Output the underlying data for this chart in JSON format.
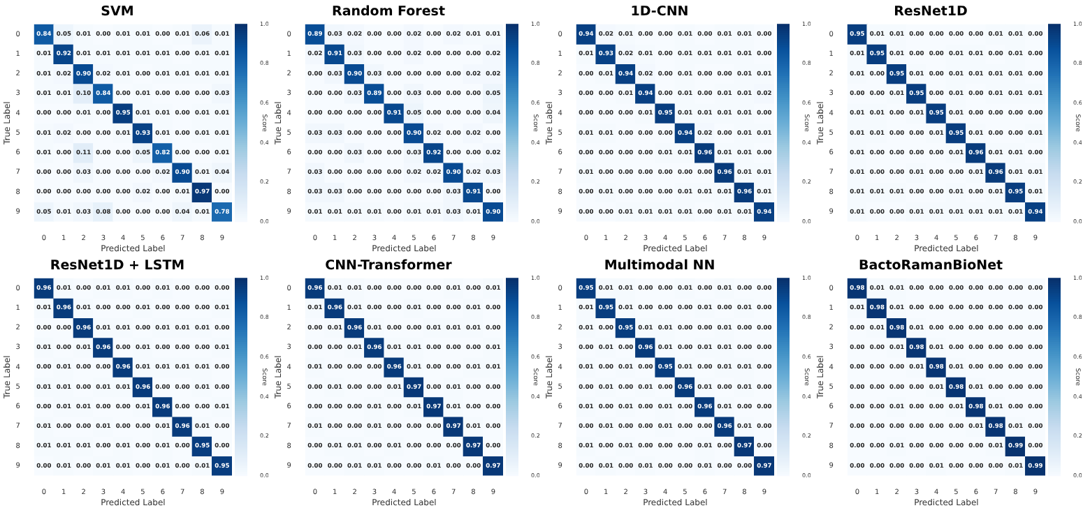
{
  "chart_data": [
    {
      "type": "heatmap",
      "title": "SVM",
      "xlabel": "Predicted Label",
      "ylabel": "True Label",
      "clabel": "Score",
      "categories": [
        "0",
        "1",
        "2",
        "3",
        "4",
        "5",
        "6",
        "7",
        "8",
        "9"
      ],
      "y_categories": [
        "0",
        "1",
        "2",
        "3",
        "4",
        "5",
        "6",
        "7",
        "8",
        "9"
      ],
      "clim": [
        0,
        1
      ],
      "cticks": [
        {
          "value": 0,
          "label": "0.0"
        },
        {
          "value": 0.2,
          "label": "0.2"
        },
        {
          "value": 0.4,
          "label": "0.4"
        },
        {
          "value": 0.6,
          "label": "0.6"
        },
        {
          "value": 0.8,
          "label": "0.8"
        },
        {
          "value": 1,
          "label": "1.0"
        }
      ],
      "cells": [
        [
          0.84,
          0.05,
          0.01,
          0,
          0.01,
          0.01,
          0,
          0.01,
          0.06,
          0.01
        ],
        [
          0.01,
          0.92,
          0.01,
          0.01,
          0.01,
          0.01,
          0.01,
          0,
          0.01,
          0.01
        ],
        [
          0.01,
          0.02,
          0.9,
          0.02,
          0.01,
          0,
          0.01,
          0.01,
          0.01,
          0.01
        ],
        [
          0.01,
          0.01,
          0.1,
          0.84,
          0,
          0.01,
          0,
          0,
          0,
          0.03
        ],
        [
          0,
          0,
          0.01,
          0,
          0.95,
          0.01,
          0.01,
          0,
          0.01,
          0.01
        ],
        [
          0.01,
          0.02,
          0,
          0,
          0.01,
          0.93,
          0.01,
          0,
          0.01,
          0.01
        ],
        [
          0.01,
          0,
          0.11,
          0,
          0,
          0.05,
          0.82,
          0,
          0,
          0.01
        ],
        [
          0,
          0,
          0.03,
          0,
          0,
          0,
          0.02,
          0.9,
          0.01,
          0.04
        ],
        [
          0,
          0,
          0,
          0,
          0,
          0.02,
          0,
          0.01,
          0.97,
          0
        ],
        [
          0.05,
          0.01,
          0.03,
          0.08,
          0,
          0,
          0,
          0.04,
          0.01,
          0.78
        ]
      ],
      "cell_labels": [
        [
          "0.84",
          "0.05",
          "0.01",
          "0.00",
          "0.01",
          "0.01",
          "0.00",
          "0.01",
          "0.06",
          "0.01"
        ],
        [
          "0.01",
          "0.92",
          "0.01",
          "0.01",
          "0.01",
          "0.01",
          "0.01",
          "0.00",
          "0.01",
          "0.01"
        ],
        [
          "0.01",
          "0.02",
          "0.90",
          "0.02",
          "0.01",
          "0.00",
          "0.01",
          "0.01",
          "0.01",
          "0.01"
        ],
        [
          "0.01",
          "0.01",
          "0.10",
          "0.84",
          "0.00",
          "0.01",
          "0.00",
          "0.00",
          "0.00",
          "0.03"
        ],
        [
          "0.00",
          "0.00",
          "0.01",
          "0.00",
          "0.95",
          "0.01",
          "0.01",
          "0.00",
          "0.01",
          "0.01"
        ],
        [
          "0.01",
          "0.02",
          "0.00",
          "0.00",
          "0.01",
          "0.93",
          "0.01",
          "0.00",
          "0.01",
          "0.01"
        ],
        [
          "0.01",
          "0.00",
          "0.11",
          "0.00",
          "0.00",
          "0.05",
          "0.82",
          "0.00",
          "0.00",
          "0.01"
        ],
        [
          "0.00",
          "0.00",
          "0.03",
          "0.00",
          "0.00",
          "0.00",
          "0.02",
          "0.90",
          "0.01",
          "0.04"
        ],
        [
          "0.00",
          "0.00",
          "0.00",
          "0.00",
          "0.00",
          "0.02",
          "0.00",
          "0.01",
          "0.97",
          "0.00"
        ],
        [
          "0.05",
          "0.01",
          "0.03",
          "0.08",
          "0.00",
          "0.00",
          "0.00",
          "0.04",
          "0.01",
          "0.78"
        ]
      ]
    },
    {
      "type": "heatmap",
      "title": "Random Forest",
      "xlabel": "Predicted Label",
      "ylabel": "True Label",
      "clabel": "Score",
      "categories": [
        "0",
        "1",
        "2",
        "3",
        "4",
        "5",
        "6",
        "7",
        "8",
        "9"
      ],
      "y_categories": [
        "0",
        "1",
        "2",
        "3",
        "4",
        "5",
        "6",
        "7",
        "8",
        "9"
      ],
      "clim": [
        0,
        1
      ],
      "cticks": [
        {
          "value": 0,
          "label": "0.0"
        },
        {
          "value": 0.2,
          "label": "0.2"
        },
        {
          "value": 0.4,
          "label": "0.4"
        },
        {
          "value": 0.6,
          "label": "0.6"
        },
        {
          "value": 0.8,
          "label": "0.8"
        },
        {
          "value": 1,
          "label": "1.0"
        }
      ],
      "cells": [
        [
          0.89,
          0.03,
          0.02,
          0,
          0,
          0.02,
          0,
          0.02,
          0.01,
          0.01
        ],
        [
          0.02,
          0.91,
          0.03,
          0,
          0,
          0.02,
          0,
          0,
          0,
          0.02
        ],
        [
          0,
          0.03,
          0.9,
          0.03,
          0,
          0,
          0,
          0,
          0.02,
          0.02
        ],
        [
          0,
          0,
          0.03,
          0.89,
          0,
          0.03,
          0,
          0,
          0,
          0.05
        ],
        [
          0,
          0,
          0,
          0,
          0.91,
          0.05,
          0,
          0,
          0,
          0.04
        ],
        [
          0.03,
          0.03,
          0,
          0,
          0,
          0.9,
          0.02,
          0,
          0.02,
          0
        ],
        [
          0,
          0,
          0.03,
          0,
          0,
          0.03,
          0.92,
          0,
          0,
          0.02
        ],
        [
          0.03,
          0,
          0,
          0,
          0,
          0.02,
          0.02,
          0.9,
          0.02,
          0.03
        ],
        [
          0.03,
          0.03,
          0,
          0,
          0,
          0,
          0,
          0.03,
          0.91,
          0
        ],
        [
          0.01,
          0.01,
          0.01,
          0.01,
          0,
          0.01,
          0.01,
          0.03,
          0.01,
          0.9
        ]
      ],
      "cell_labels": [
        [
          "0.89",
          "0.03",
          "0.02",
          "0.00",
          "0.00",
          "0.02",
          "0.00",
          "0.02",
          "0.01",
          "0.01"
        ],
        [
          "0.02",
          "0.91",
          "0.03",
          "0.00",
          "0.00",
          "0.02",
          "0.00",
          "0.00",
          "0.00",
          "0.02"
        ],
        [
          "0.00",
          "0.03",
          "0.90",
          "0.03",
          "0.00",
          "0.00",
          "0.00",
          "0.00",
          "0.02",
          "0.02"
        ],
        [
          "0.00",
          "0.00",
          "0.03",
          "0.89",
          "0.00",
          "0.03",
          "0.00",
          "0.00",
          "0.00",
          "0.05"
        ],
        [
          "0.00",
          "0.00",
          "0.00",
          "0.00",
          "0.91",
          "0.05",
          "0.00",
          "0.00",
          "0.00",
          "0.04"
        ],
        [
          "0.03",
          "0.03",
          "0.00",
          "0.00",
          "0.00",
          "0.90",
          "0.02",
          "0.00",
          "0.02",
          "0.00"
        ],
        [
          "0.00",
          "0.00",
          "0.03",
          "0.00",
          "0.00",
          "0.03",
          "0.92",
          "0.00",
          "0.00",
          "0.02"
        ],
        [
          "0.03",
          "0.00",
          "0.00",
          "0.00",
          "0.00",
          "0.02",
          "0.02",
          "0.90",
          "0.02",
          "0.03"
        ],
        [
          "0.03",
          "0.03",
          "0.00",
          "0.00",
          "0.00",
          "0.00",
          "0.00",
          "0.03",
          "0.91",
          "0.00"
        ],
        [
          "0.01",
          "0.01",
          "0.01",
          "0.01",
          "0.00",
          "0.01",
          "0.01",
          "0.03",
          "0.01",
          "0.90"
        ]
      ]
    },
    {
      "type": "heatmap",
      "title": "1D-CNN",
      "xlabel": "Predicted Label",
      "ylabel": "True Label",
      "clabel": "Score",
      "categories": [
        "0",
        "1",
        "2",
        "3",
        "4",
        "5",
        "6",
        "7",
        "8",
        "9"
      ],
      "y_categories": [
        "0",
        "1",
        "2",
        "3",
        "4",
        "5",
        "6",
        "7",
        "8",
        "9"
      ],
      "clim": [
        0,
        1
      ],
      "cticks": [
        {
          "value": 0,
          "label": "0.0"
        },
        {
          "value": 0.2,
          "label": "0.2"
        },
        {
          "value": 0.4,
          "label": "0.4"
        },
        {
          "value": 0.6,
          "label": "0.6"
        },
        {
          "value": 0.8,
          "label": "0.8"
        },
        {
          "value": 1,
          "label": "1.0"
        }
      ],
      "cells": [
        [
          0.94,
          0.02,
          0.01,
          0,
          0,
          0.01,
          0,
          0.01,
          0.01,
          0
        ],
        [
          0.01,
          0.93,
          0.02,
          0.01,
          0,
          0.01,
          0.01,
          0.01,
          0.01,
          0
        ],
        [
          0,
          0.01,
          0.94,
          0.02,
          0,
          0.01,
          0,
          0,
          0.01,
          0.01
        ],
        [
          0,
          0,
          0.01,
          0.94,
          0,
          0.01,
          0,
          0.01,
          0.01,
          0.02
        ],
        [
          0,
          0,
          0,
          0.01,
          0.95,
          0.01,
          0.01,
          0.01,
          0.01,
          0
        ],
        [
          0.01,
          0.01,
          0,
          0,
          0,
          0.94,
          0.02,
          0,
          0.01,
          0.01
        ],
        [
          0,
          0,
          0,
          0,
          0.01,
          0.01,
          0.96,
          0.01,
          0.01,
          0
        ],
        [
          0.01,
          0,
          0,
          0,
          0,
          0,
          0,
          0.96,
          0.01,
          0.01
        ],
        [
          0,
          0.01,
          0,
          0,
          0,
          0.01,
          0.01,
          0.01,
          0.96,
          0.01
        ],
        [
          0,
          0,
          0.01,
          0.01,
          0.01,
          0.01,
          0,
          0.01,
          0.01,
          0.94
        ]
      ],
      "cell_labels": [
        [
          "0.94",
          "0.02",
          "0.01",
          "0.00",
          "0.00",
          "0.01",
          "0.00",
          "0.01",
          "0.01",
          "0.00"
        ],
        [
          "0.01",
          "0.93",
          "0.02",
          "0.01",
          "0.00",
          "0.01",
          "0.01",
          "0.01",
          "0.01",
          "0.00"
        ],
        [
          "0.00",
          "0.01",
          "0.94",
          "0.02",
          "0.00",
          "0.01",
          "0.00",
          "0.00",
          "0.01",
          "0.01"
        ],
        [
          "0.00",
          "0.00",
          "0.01",
          "0.94",
          "0.00",
          "0.01",
          "0.00",
          "0.01",
          "0.01",
          "0.02"
        ],
        [
          "0.00",
          "0.00",
          "0.00",
          "0.01",
          "0.95",
          "0.01",
          "0.01",
          "0.01",
          "0.01",
          "0.00"
        ],
        [
          "0.01",
          "0.01",
          "0.00",
          "0.00",
          "0.00",
          "0.94",
          "0.02",
          "0.00",
          "0.01",
          "0.01"
        ],
        [
          "0.00",
          "0.00",
          "0.00",
          "0.00",
          "0.01",
          "0.01",
          "0.96",
          "0.01",
          "0.01",
          "0.00"
        ],
        [
          "0.01",
          "0.00",
          "0.00",
          "0.00",
          "0.00",
          "0.00",
          "0.00",
          "0.96",
          "0.01",
          "0.01"
        ],
        [
          "0.00",
          "0.01",
          "0.00",
          "0.00",
          "0.00",
          "0.01",
          "0.01",
          "0.01",
          "0.96",
          "0.01"
        ],
        [
          "0.00",
          "0.00",
          "0.01",
          "0.01",
          "0.01",
          "0.01",
          "0.00",
          "0.01",
          "0.01",
          "0.94"
        ]
      ]
    },
    {
      "type": "heatmap",
      "title": "ResNet1D",
      "xlabel": "Predicted Label",
      "ylabel": "True Label",
      "clabel": "Score",
      "categories": [
        "0",
        "1",
        "2",
        "3",
        "4",
        "5",
        "6",
        "7",
        "8",
        "9"
      ],
      "y_categories": [
        "0",
        "1",
        "2",
        "3",
        "4",
        "5",
        "6",
        "7",
        "8",
        "9"
      ],
      "clim": [
        0,
        1
      ],
      "cticks": [
        {
          "value": 0,
          "label": "0.0"
        },
        {
          "value": 0.2,
          "label": "0.2"
        },
        {
          "value": 0.4,
          "label": "0.4"
        },
        {
          "value": 0.6,
          "label": "0.6"
        },
        {
          "value": 0.8,
          "label": "0.8"
        },
        {
          "value": 1,
          "label": "1.0"
        }
      ],
      "cells": [
        [
          0.95,
          0.01,
          0.01,
          0,
          0,
          0,
          0,
          0.01,
          0.01,
          0
        ],
        [
          0.01,
          0.95,
          0.01,
          0,
          0,
          0.01,
          0.01,
          0,
          0.01,
          0
        ],
        [
          0.01,
          0,
          0.95,
          0.01,
          0,
          0.01,
          0.01,
          0.01,
          0.01,
          0
        ],
        [
          0,
          0,
          0.01,
          0.95,
          0,
          0.01,
          0,
          0.01,
          0.01,
          0.01
        ],
        [
          0.01,
          0.01,
          0,
          0.01,
          0.95,
          0.01,
          0,
          0,
          0,
          0
        ],
        [
          0.01,
          0.01,
          0,
          0,
          0.01,
          0.95,
          0.01,
          0,
          0,
          0.01
        ],
        [
          0.01,
          0,
          0,
          0,
          0,
          0.01,
          0.96,
          0.01,
          0.01,
          0
        ],
        [
          0.01,
          0,
          0,
          0.01,
          0,
          0,
          0.01,
          0.96,
          0.01,
          0.01
        ],
        [
          0.01,
          0.01,
          0.01,
          0,
          0,
          0.01,
          0,
          0.01,
          0.95,
          0.01
        ],
        [
          0.01,
          0,
          0,
          0.01,
          0.01,
          0.01,
          0.01,
          0.01,
          0.01,
          0.94
        ]
      ],
      "cell_labels": [
        [
          "0.95",
          "0.01",
          "0.01",
          "0.00",
          "0.00",
          "0.00",
          "0.00",
          "0.01",
          "0.01",
          "0.00"
        ],
        [
          "0.01",
          "0.95",
          "0.01",
          "0.00",
          "0.00",
          "0.01",
          "0.01",
          "0.00",
          "0.01",
          "0.00"
        ],
        [
          "0.01",
          "0.00",
          "0.95",
          "0.01",
          "0.00",
          "0.01",
          "0.01",
          "0.01",
          "0.01",
          "0.00"
        ],
        [
          "0.00",
          "0.00",
          "0.01",
          "0.95",
          "0.00",
          "0.01",
          "0.00",
          "0.01",
          "0.01",
          "0.01"
        ],
        [
          "0.01",
          "0.01",
          "0.00",
          "0.01",
          "0.95",
          "0.01",
          "0.00",
          "0.00",
          "0.00",
          "0.00"
        ],
        [
          "0.01",
          "0.01",
          "0.00",
          "0.00",
          "0.01",
          "0.95",
          "0.01",
          "0.00",
          "0.00",
          "0.01"
        ],
        [
          "0.01",
          "0.00",
          "0.00",
          "0.00",
          "0.00",
          "0.01",
          "0.96",
          "0.01",
          "0.01",
          "0.00"
        ],
        [
          "0.01",
          "0.00",
          "0.00",
          "0.01",
          "0.00",
          "0.00",
          "0.01",
          "0.96",
          "0.01",
          "0.01"
        ],
        [
          "0.01",
          "0.01",
          "0.01",
          "0.00",
          "0.00",
          "0.01",
          "0.00",
          "0.01",
          "0.95",
          "0.01"
        ],
        [
          "0.01",
          "0.00",
          "0.00",
          "0.01",
          "0.01",
          "0.01",
          "0.01",
          "0.01",
          "0.01",
          "0.94"
        ]
      ]
    },
    {
      "type": "heatmap",
      "title": "ResNet1D + LSTM",
      "xlabel": "Predicted Label",
      "ylabel": "True Label",
      "clabel": "Score",
      "categories": [
        "0",
        "1",
        "2",
        "3",
        "4",
        "5",
        "6",
        "7",
        "8",
        "9"
      ],
      "y_categories": [
        "0",
        "1",
        "2",
        "3",
        "4",
        "5",
        "6",
        "7",
        "8",
        "9"
      ],
      "clim": [
        0,
        1
      ],
      "cticks": [
        {
          "value": 0,
          "label": "0.0"
        },
        {
          "value": 0.2,
          "label": "0.2"
        },
        {
          "value": 0.4,
          "label": "0.4"
        },
        {
          "value": 0.6,
          "label": "0.6"
        },
        {
          "value": 0.8,
          "label": "0.8"
        },
        {
          "value": 1,
          "label": "1.0"
        }
      ],
      "cells": [
        [
          0.96,
          0.01,
          0,
          0.01,
          0.01,
          0,
          0.01,
          0,
          0,
          0
        ],
        [
          0.01,
          0.96,
          0.01,
          0,
          0,
          0.01,
          0,
          0,
          0,
          0.01
        ],
        [
          0,
          0,
          0.96,
          0.01,
          0.01,
          0,
          0.01,
          0.01,
          0.01,
          0
        ],
        [
          0.01,
          0,
          0.01,
          0.96,
          0,
          0.01,
          0,
          0,
          0,
          0.01
        ],
        [
          0,
          0.01,
          0,
          0,
          0.96,
          0.01,
          0.01,
          0.01,
          0.01,
          0
        ],
        [
          0.01,
          0.01,
          0,
          0.01,
          0.01,
          0.96,
          0,
          0,
          0.01,
          0
        ],
        [
          0,
          0.01,
          0.01,
          0,
          0,
          0.01,
          0.96,
          0,
          0,
          0.01
        ],
        [
          0.01,
          0,
          0,
          0.01,
          0,
          0,
          0.01,
          0.96,
          0.01,
          0
        ],
        [
          0.01,
          0.01,
          0.01,
          0,
          0.01,
          0,
          0.01,
          0,
          0.95,
          0
        ],
        [
          0,
          0.01,
          0,
          0.01,
          0.01,
          0,
          0.01,
          0,
          0.01,
          0.95
        ]
      ],
      "cell_labels": [
        [
          "0.96",
          "0.01",
          "0.00",
          "0.01",
          "0.01",
          "0.00",
          "0.01",
          "0.00",
          "0.00",
          "0.00"
        ],
        [
          "0.01",
          "0.96",
          "0.01",
          "0.00",
          "0.00",
          "0.01",
          "0.00",
          "0.00",
          "0.00",
          "0.01"
        ],
        [
          "0.00",
          "0.00",
          "0.96",
          "0.01",
          "0.01",
          "0.00",
          "0.01",
          "0.01",
          "0.01",
          "0.00"
        ],
        [
          "0.01",
          "0.00",
          "0.01",
          "0.96",
          "0.00",
          "0.01",
          "0.00",
          "0.00",
          "0.00",
          "0.01"
        ],
        [
          "0.00",
          "0.01",
          "0.00",
          "0.00",
          "0.96",
          "0.01",
          "0.01",
          "0.01",
          "0.01",
          "0.00"
        ],
        [
          "0.01",
          "0.01",
          "0.00",
          "0.01",
          "0.01",
          "0.96",
          "0.00",
          "0.00",
          "0.01",
          "0.00"
        ],
        [
          "0.00",
          "0.01",
          "0.01",
          "0.00",
          "0.00",
          "0.01",
          "0.96",
          "0.00",
          "0.00",
          "0.01"
        ],
        [
          "0.01",
          "0.00",
          "0.00",
          "0.01",
          "0.00",
          "0.00",
          "0.01",
          "0.96",
          "0.01",
          "0.00"
        ],
        [
          "0.01",
          "0.01",
          "0.01",
          "0.00",
          "0.01",
          "0.00",
          "0.01",
          "0.00",
          "0.95",
          "0.00"
        ],
        [
          "0.00",
          "0.01",
          "0.00",
          "0.01",
          "0.01",
          "0.00",
          "0.01",
          "0.00",
          "0.01",
          "0.95"
        ]
      ]
    },
    {
      "type": "heatmap",
      "title": "CNN-Transformer",
      "xlabel": "Predicted Label",
      "ylabel": "True Label",
      "clabel": "Score",
      "categories": [
        "0",
        "1",
        "2",
        "3",
        "4",
        "5",
        "6",
        "7",
        "8",
        "9"
      ],
      "y_categories": [
        "0",
        "1",
        "2",
        "3",
        "4",
        "5",
        "6",
        "7",
        "8",
        "9"
      ],
      "clim": [
        0,
        1
      ],
      "cticks": [
        {
          "value": 0,
          "label": "0.0"
        },
        {
          "value": 0.2,
          "label": "0.2"
        },
        {
          "value": 0.4,
          "label": "0.4"
        },
        {
          "value": 0.6,
          "label": "0.6"
        },
        {
          "value": 0.8,
          "label": "0.8"
        },
        {
          "value": 1,
          "label": "1.0"
        }
      ],
      "cells": [
        [
          0.96,
          0.01,
          0.01,
          0,
          0,
          0,
          0,
          0.01,
          0,
          0.01
        ],
        [
          0.01,
          0.96,
          0.01,
          0,
          0,
          0.01,
          0,
          0,
          0.01,
          0
        ],
        [
          0,
          0.01,
          0.96,
          0.01,
          0,
          0,
          0.01,
          0.01,
          0.01,
          0
        ],
        [
          0,
          0,
          0.01,
          0.96,
          0.01,
          0.01,
          0,
          0,
          0,
          0.01
        ],
        [
          0.01,
          0,
          0,
          0,
          0.96,
          0.01,
          0,
          0,
          0.01,
          0.01
        ],
        [
          0,
          0.01,
          0,
          0,
          0.01,
          0.97,
          0,
          0.01,
          0,
          0
        ],
        [
          0,
          0,
          0,
          0.01,
          0,
          0.01,
          0.97,
          0.01,
          0,
          0
        ],
        [
          0.01,
          0,
          0,
          0.01,
          0,
          0,
          0,
          0.97,
          0.01,
          0
        ],
        [
          0,
          0.01,
          0.01,
          0,
          0.01,
          0,
          0,
          0,
          0.97,
          0
        ],
        [
          0,
          0,
          0.01,
          0.01,
          0,
          0,
          0.01,
          0,
          0,
          0.97
        ]
      ],
      "cell_labels": [
        [
          "0.96",
          "0.01",
          "0.01",
          "0.00",
          "0.00",
          "0.00",
          "0.00",
          "0.01",
          "0.00",
          "0.01"
        ],
        [
          "0.01",
          "0.96",
          "0.01",
          "0.00",
          "0.00",
          "0.01",
          "0.00",
          "0.00",
          "0.01",
          "0.00"
        ],
        [
          "0.00",
          "0.01",
          "0.96",
          "0.01",
          "0.00",
          "0.00",
          "0.01",
          "0.01",
          "0.01",
          "0.00"
        ],
        [
          "0.00",
          "0.00",
          "0.01",
          "0.96",
          "0.01",
          "0.01",
          "0.00",
          "0.00",
          "0.00",
          "0.01"
        ],
        [
          "0.01",
          "0.00",
          "0.00",
          "0.00",
          "0.96",
          "0.01",
          "0.00",
          "0.00",
          "0.01",
          "0.01"
        ],
        [
          "0.00",
          "0.01",
          "0.00",
          "0.00",
          "0.01",
          "0.97",
          "0.00",
          "0.01",
          "0.00",
          "0.00"
        ],
        [
          "0.00",
          "0.00",
          "0.00",
          "0.01",
          "0.00",
          "0.01",
          "0.97",
          "0.01",
          "0.00",
          "0.00"
        ],
        [
          "0.01",
          "0.00",
          "0.00",
          "0.01",
          "0.00",
          "0.00",
          "0.00",
          "0.97",
          "0.01",
          "0.00"
        ],
        [
          "0.00",
          "0.01",
          "0.01",
          "0.00",
          "0.01",
          "0.00",
          "0.00",
          "0.00",
          "0.97",
          "0.00"
        ],
        [
          "0.00",
          "0.00",
          "0.01",
          "0.01",
          "0.00",
          "0.00",
          "0.01",
          "0.00",
          "0.00",
          "0.97"
        ]
      ]
    },
    {
      "type": "heatmap",
      "title": "Multimodal NN",
      "xlabel": "Predicted Label",
      "ylabel": "True Label",
      "clabel": "Score",
      "categories": [
        "0",
        "1",
        "2",
        "3",
        "4",
        "5",
        "6",
        "7",
        "8",
        "9"
      ],
      "y_categories": [
        "0",
        "1",
        "2",
        "3",
        "4",
        "5",
        "6",
        "7",
        "8",
        "9"
      ],
      "clim": [
        0,
        1
      ],
      "cticks": [
        {
          "value": 0,
          "label": "0.0"
        },
        {
          "value": 0.2,
          "label": "0.2"
        },
        {
          "value": 0.4,
          "label": "0.4"
        },
        {
          "value": 0.6,
          "label": "0.6"
        },
        {
          "value": 0.8,
          "label": "0.8"
        },
        {
          "value": 1,
          "label": "1.0"
        }
      ],
      "cells": [
        [
          0.95,
          0.01,
          0.01,
          0,
          0,
          0.01,
          0,
          0.01,
          0,
          0
        ],
        [
          0.01,
          0.95,
          0.01,
          0,
          0,
          0,
          0.01,
          0,
          0.01,
          0
        ],
        [
          0.01,
          0,
          0.95,
          0.01,
          0.01,
          0,
          0,
          0.01,
          0,
          0
        ],
        [
          0,
          0.01,
          0,
          0.96,
          0.01,
          0,
          0.01,
          0.01,
          0,
          0
        ],
        [
          0.01,
          0,
          0.01,
          0,
          0.95,
          0.01,
          0,
          0.01,
          0.01,
          0
        ],
        [
          0,
          0.01,
          0,
          0.01,
          0,
          0.96,
          0.01,
          0,
          0.01,
          0
        ],
        [
          0.01,
          0,
          0.01,
          0,
          0.01,
          0,
          0.96,
          0.01,
          0,
          0
        ],
        [
          0,
          0.01,
          0,
          0,
          0.01,
          0,
          0,
          0.96,
          0.01,
          0
        ],
        [
          0.01,
          0,
          0.01,
          0,
          0,
          0,
          0.01,
          0,
          0.97,
          0
        ],
        [
          0,
          0.01,
          0,
          0.01,
          0,
          0,
          0.01,
          0,
          0,
          0.97
        ]
      ],
      "cell_labels": [
        [
          "0.95",
          "0.01",
          "0.01",
          "0.00",
          "0.00",
          "0.01",
          "0.00",
          "0.01",
          "0.00",
          "0.00"
        ],
        [
          "0.01",
          "0.95",
          "0.01",
          "0.00",
          "0.00",
          "0.00",
          "0.01",
          "0.00",
          "0.01",
          "0.00"
        ],
        [
          "0.01",
          "0.00",
          "0.95",
          "0.01",
          "0.01",
          "0.00",
          "0.00",
          "0.01",
          "0.00",
          "0.00"
        ],
        [
          "0.00",
          "0.01",
          "0.00",
          "0.96",
          "0.01",
          "0.00",
          "0.01",
          "0.01",
          "0.00",
          "0.00"
        ],
        [
          "0.01",
          "0.00",
          "0.01",
          "0.00",
          "0.95",
          "0.01",
          "0.00",
          "0.01",
          "0.01",
          "0.00"
        ],
        [
          "0.00",
          "0.01",
          "0.00",
          "0.01",
          "0.00",
          "0.96",
          "0.01",
          "0.00",
          "0.01",
          "0.00"
        ],
        [
          "0.01",
          "0.00",
          "0.01",
          "0.00",
          "0.01",
          "0.00",
          "0.96",
          "0.01",
          "0.00",
          "0.00"
        ],
        [
          "0.00",
          "0.01",
          "0.00",
          "0.00",
          "0.01",
          "0.00",
          "0.00",
          "0.96",
          "0.01",
          "0.00"
        ],
        [
          "0.01",
          "0.00",
          "0.01",
          "0.00",
          "0.00",
          "0.00",
          "0.01",
          "0.00",
          "0.97",
          "0.00"
        ],
        [
          "0.00",
          "0.01",
          "0.00",
          "0.01",
          "0.00",
          "0.00",
          "0.01",
          "0.00",
          "0.00",
          "0.97"
        ]
      ]
    },
    {
      "type": "heatmap",
      "title": "BactoRamanBioNet",
      "xlabel": "Predicted Label",
      "ylabel": "True Label",
      "clabel": "Score",
      "categories": [
        "0",
        "1",
        "2",
        "3",
        "4",
        "5",
        "6",
        "7",
        "8",
        "9"
      ],
      "y_categories": [
        "0",
        "1",
        "2",
        "3",
        "4",
        "5",
        "6",
        "7",
        "8",
        "9"
      ],
      "clim": [
        0,
        1
      ],
      "cticks": [
        {
          "value": 0,
          "label": "0.0"
        },
        {
          "value": 0.2,
          "label": "0.2"
        },
        {
          "value": 0.4,
          "label": "0.4"
        },
        {
          "value": 0.6,
          "label": "0.6"
        },
        {
          "value": 0.8,
          "label": "0.8"
        },
        {
          "value": 1,
          "label": "1.0"
        }
      ],
      "cells": [
        [
          0.98,
          0.01,
          0.01,
          0,
          0,
          0,
          0,
          0,
          0,
          0
        ],
        [
          0.01,
          0.98,
          0.01,
          0,
          0,
          0,
          0,
          0,
          0,
          0
        ],
        [
          0,
          0.01,
          0.98,
          0.01,
          0,
          0,
          0,
          0,
          0,
          0
        ],
        [
          0,
          0,
          0.01,
          0.98,
          0.01,
          0,
          0,
          0,
          0,
          0
        ],
        [
          0,
          0,
          0,
          0.01,
          0.98,
          0.01,
          0,
          0,
          0,
          0
        ],
        [
          0,
          0,
          0,
          0,
          0.01,
          0.98,
          0.01,
          0,
          0,
          0
        ],
        [
          0,
          0,
          0.01,
          0,
          0,
          0.01,
          0.98,
          0.01,
          0,
          0
        ],
        [
          0,
          0,
          0,
          0,
          0,
          0,
          0.01,
          0.98,
          0.01,
          0
        ],
        [
          0,
          0,
          0.01,
          0,
          0,
          0,
          0,
          0.01,
          0.99,
          0
        ],
        [
          0,
          0,
          0,
          0,
          0.01,
          0,
          0,
          0,
          0.01,
          0.99
        ]
      ],
      "cell_labels": [
        [
          "0.98",
          "0.01",
          "0.01",
          "0.00",
          "0.00",
          "0.00",
          "0.00",
          "0.00",
          "0.00",
          "0.00"
        ],
        [
          "0.01",
          "0.98",
          "0.01",
          "0.00",
          "0.00",
          "0.00",
          "0.00",
          "0.00",
          "0.00",
          "0.00"
        ],
        [
          "0.00",
          "0.01",
          "0.98",
          "0.01",
          "0.00",
          "0.00",
          "0.00",
          "0.00",
          "0.00",
          "0.00"
        ],
        [
          "0.00",
          "0.00",
          "0.01",
          "0.98",
          "0.01",
          "0.00",
          "0.00",
          "0.00",
          "0.00",
          "0.00"
        ],
        [
          "0.00",
          "0.00",
          "0.00",
          "0.01",
          "0.98",
          "0.01",
          "0.00",
          "0.00",
          "0.00",
          "0.00"
        ],
        [
          "0.00",
          "0.00",
          "0.00",
          "0.00",
          "0.01",
          "0.98",
          "0.01",
          "0.00",
          "0.00",
          "0.00"
        ],
        [
          "0.00",
          "0.00",
          "0.01",
          "0.00",
          "0.00",
          "0.01",
          "0.98",
          "0.01",
          "0.00",
          "0.00"
        ],
        [
          "0.00",
          "0.00",
          "0.00",
          "0.00",
          "0.00",
          "0.00",
          "0.01",
          "0.98",
          "0.01",
          "0.00"
        ],
        [
          "0.00",
          "0.00",
          "0.01",
          "0.00",
          "0.00",
          "0.00",
          "0.00",
          "0.01",
          "0.99",
          "0.00"
        ],
        [
          "0.00",
          "0.00",
          "0.00",
          "0.00",
          "0.01",
          "0.00",
          "0.00",
          "0.00",
          "0.01",
          "0.99"
        ]
      ]
    }
  ]
}
